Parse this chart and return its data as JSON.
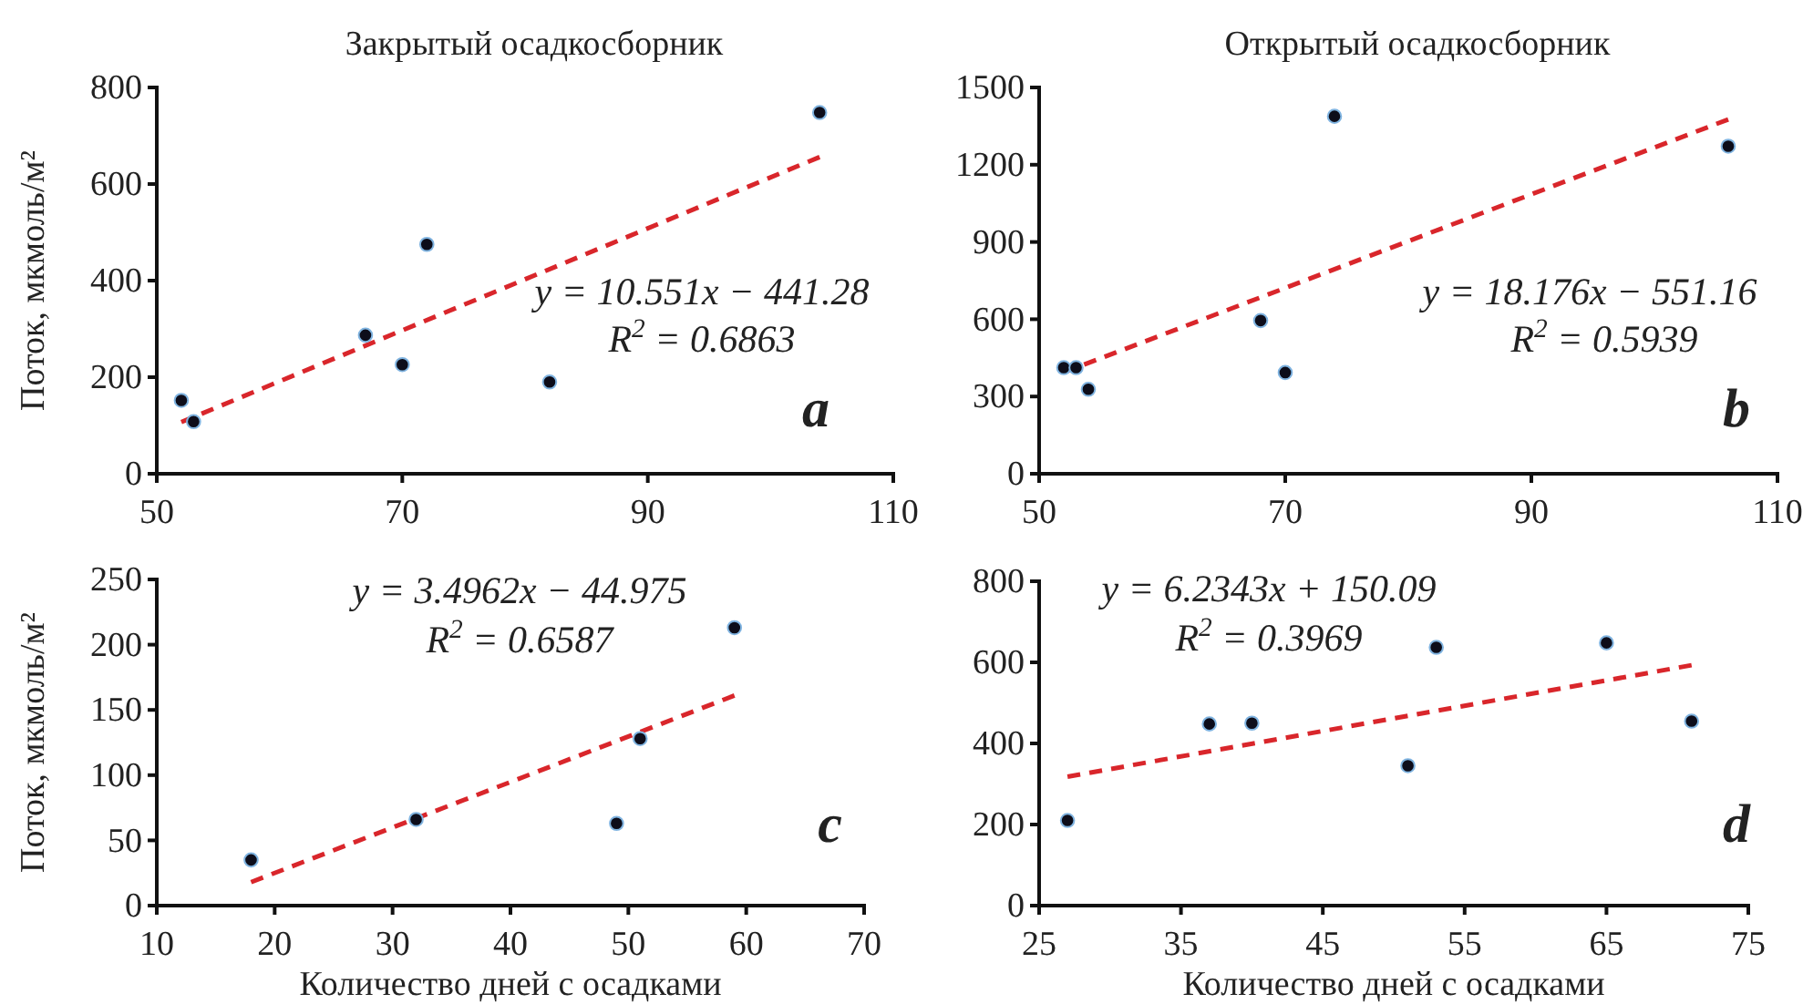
{
  "chart_data": [
    {
      "type": "scatter",
      "title": "Закрытый осадкосборник",
      "ylabel": "Поток, мкмоль/м²",
      "xlim": [
        50,
        110
      ],
      "xticks": [
        50,
        70,
        90,
        110
      ],
      "ylim": [
        0,
        800
      ],
      "yticks": [
        0,
        200,
        400,
        600,
        800
      ],
      "grid": false,
      "series": [
        {
          "x": [
            52,
            53,
            67,
            70,
            72,
            82,
            104
          ],
          "values": [
            152,
            108,
            287,
            226,
            475,
            190,
            748
          ],
          "color": "#0d0d1a",
          "marker": "circle"
        },
        {
          "type": "line",
          "x": [
            52,
            104
          ],
          "values": [
            107,
            656
          ],
          "color": "#d9262b",
          "line_style": "dashed",
          "marker": "none"
        }
      ],
      "annotations": [
        "y = 10.551x − 441.28",
        "R$^{2}$ = 0.6863",
        "a"
      ]
    },
    {
      "type": "scatter",
      "title": "Открытый осадкосборник",
      "xlim": [
        50,
        110
      ],
      "xticks": [
        50,
        70,
        90,
        110
      ],
      "ylim": [
        0,
        1500
      ],
      "yticks": [
        0,
        300,
        600,
        900,
        1200,
        1500
      ],
      "grid": false,
      "series": [
        {
          "x": [
            52,
            53,
            54,
            68,
            70,
            74,
            106
          ],
          "values": [
            412,
            412,
            328,
            595,
            393,
            1388,
            1272
          ],
          "color": "#0d0d1a",
          "marker": "circle"
        },
        {
          "type": "line",
          "x": [
            52,
            106
          ],
          "values": [
            394,
            1376
          ],
          "color": "#d9262b",
          "line_style": "dashed",
          "marker": "none"
        }
      ],
      "annotations": [
        "y = 18.176x − 551.16",
        "R$^{2}$ = 0.5939",
        "b"
      ]
    },
    {
      "type": "scatter",
      "xlabel": "Количество дней с осадками",
      "ylabel": "Поток, мкмоль/м²",
      "xlim": [
        10,
        70
      ],
      "xticks": [
        10,
        20,
        30,
        40,
        50,
        60,
        70
      ],
      "ylim": [
        0,
        250
      ],
      "yticks": [
        0,
        50,
        100,
        150,
        200,
        250
      ],
      "grid": false,
      "series": [
        {
          "x": [
            18,
            32,
            49,
            51,
            59
          ],
          "values": [
            35,
            66,
            63,
            128,
            213
          ],
          "color": "#0d0d1a",
          "marker": "circle"
        },
        {
          "type": "line",
          "x": [
            18,
            59
          ],
          "values": [
            18,
            161
          ],
          "color": "#d9262b",
          "line_style": "dashed",
          "marker": "none"
        }
      ],
      "annotations": [
        "y = 3.4962x − 44.975",
        "R$^{2}$ = 0.6587",
        "c"
      ]
    },
    {
      "type": "scatter",
      "xlabel": "Количество дней с осадками",
      "xlim": [
        25,
        75
      ],
      "xticks": [
        25,
        35,
        45,
        55,
        65,
        75
      ],
      "ylim": [
        0,
        800
      ],
      "yticks": [
        0,
        200,
        400,
        600,
        800
      ],
      "grid": false,
      "series": [
        {
          "x": [
            27,
            37,
            40,
            51,
            53,
            65,
            71
          ],
          "values": [
            210,
            448,
            450,
            345,
            637,
            648,
            455
          ],
          "color": "#0d0d1a",
          "marker": "circle"
        },
        {
          "type": "line",
          "x": [
            27,
            71
          ],
          "values": [
            318,
            593
          ],
          "color": "#d9262b",
          "line_style": "dashed",
          "marker": "none"
        }
      ],
      "annotations": [
        "y = 6.2343x + 150.09",
        "R$^{2}$ = 0.3969",
        "d"
      ]
    }
  ]
}
